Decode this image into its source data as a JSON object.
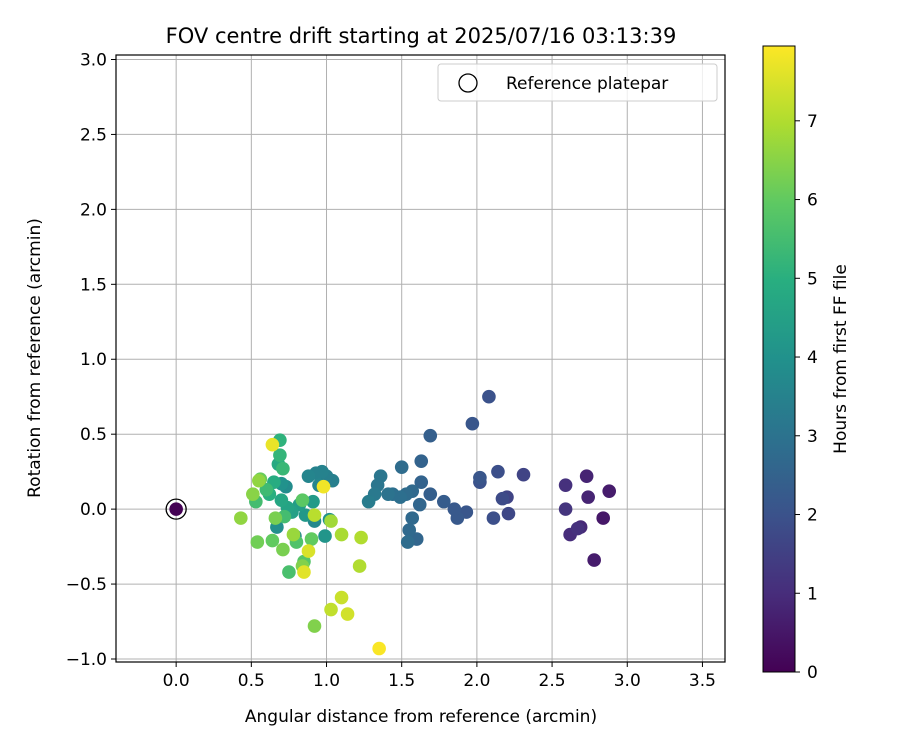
{
  "chart_data": {
    "type": "scatter",
    "title": "FOV centre drift starting at 2025/07/16 03:13:39",
    "xlabel": "Angular distance from reference (arcmin)",
    "ylabel": "Rotation from reference (arcmin)",
    "xlim": [
      -0.4,
      3.65
    ],
    "ylim": [
      -1.02,
      3.03
    ],
    "xticks": [
      0.0,
      0.5,
      1.0,
      1.5,
      2.0,
      2.5,
      3.0,
      3.5
    ],
    "xtick_labels": [
      "0.0",
      "0.5",
      "1.0",
      "1.5",
      "2.0",
      "2.5",
      "3.0",
      "3.5"
    ],
    "yticks": [
      -1.0,
      -0.5,
      0.0,
      0.5,
      1.0,
      1.5,
      2.0,
      2.5,
      3.0
    ],
    "ytick_labels": [
      "−1.0",
      "−0.5",
      "0.0",
      "0.5",
      "1.0",
      "1.5",
      "2.0",
      "2.5",
      "3.0"
    ],
    "grid": true,
    "legend": {
      "placement": "top-right",
      "entries": [
        "Reference platepar"
      ]
    },
    "reference_point": {
      "x": 0.0,
      "y": 0.0,
      "c": 0.0
    },
    "colorbar": {
      "label": "Hours from first FF file",
      "colormap": "viridis",
      "range": [
        0,
        7.95
      ],
      "ticks": [
        0,
        1,
        2,
        3,
        4,
        5,
        6,
        7
      ],
      "tick_labels": [
        "0",
        "1",
        "2",
        "3",
        "4",
        "5",
        "6",
        "7"
      ]
    },
    "points": [
      {
        "x": 2.84,
        "y": -0.06,
        "c": 0.5
      },
      {
        "x": 2.78,
        "y": -0.34,
        "c": 0.6
      },
      {
        "x": 2.88,
        "y": 0.12,
        "c": 0.6
      },
      {
        "x": 2.73,
        "y": 0.22,
        "c": 0.8
      },
      {
        "x": 2.74,
        "y": 0.08,
        "c": 0.8
      },
      {
        "x": 2.69,
        "y": -0.12,
        "c": 0.9
      },
      {
        "x": 2.62,
        "y": -0.17,
        "c": 1.0
      },
      {
        "x": 2.59,
        "y": 0.16,
        "c": 1.1
      },
      {
        "x": 2.59,
        "y": 0.0,
        "c": 1.2
      },
      {
        "x": 2.67,
        "y": -0.13,
        "c": 1.1
      },
      {
        "x": 2.31,
        "y": 0.23,
        "c": 1.6
      },
      {
        "x": 2.2,
        "y": 0.08,
        "c": 1.6
      },
      {
        "x": 2.21,
        "y": -0.03,
        "c": 1.7
      },
      {
        "x": 2.17,
        "y": 0.07,
        "c": 1.8
      },
      {
        "x": 2.14,
        "y": 0.25,
        "c": 1.9
      },
      {
        "x": 2.11,
        "y": -0.06,
        "c": 1.9
      },
      {
        "x": 2.08,
        "y": 0.75,
        "c": 2.0
      },
      {
        "x": 2.02,
        "y": 0.18,
        "c": 2.0
      },
      {
        "x": 2.02,
        "y": 0.21,
        "c": 2.1
      },
      {
        "x": 1.97,
        "y": 0.57,
        "c": 2.1
      },
      {
        "x": 1.93,
        "y": -0.02,
        "c": 2.1
      },
      {
        "x": 1.87,
        "y": -0.06,
        "c": 2.2
      },
      {
        "x": 1.85,
        "y": 0.0,
        "c": 2.2
      },
      {
        "x": 1.78,
        "y": 0.05,
        "c": 2.3
      },
      {
        "x": 1.69,
        "y": 0.49,
        "c": 2.4
      },
      {
        "x": 1.69,
        "y": 0.1,
        "c": 2.4
      },
      {
        "x": 1.63,
        "y": 0.32,
        "c": 2.5
      },
      {
        "x": 1.63,
        "y": 0.18,
        "c": 2.5
      },
      {
        "x": 1.62,
        "y": 0.03,
        "c": 2.6
      },
      {
        "x": 1.6,
        "y": -0.2,
        "c": 2.6
      },
      {
        "x": 1.57,
        "y": 0.12,
        "c": 2.7
      },
      {
        "x": 1.57,
        "y": -0.06,
        "c": 2.7
      },
      {
        "x": 1.55,
        "y": -0.14,
        "c": 2.7
      },
      {
        "x": 1.54,
        "y": -0.22,
        "c": 2.8
      },
      {
        "x": 1.53,
        "y": 0.1,
        "c": 2.8
      },
      {
        "x": 1.5,
        "y": 0.28,
        "c": 2.8
      },
      {
        "x": 1.49,
        "y": 0.08,
        "c": 2.9
      },
      {
        "x": 1.44,
        "y": 0.1,
        "c": 2.9
      },
      {
        "x": 1.41,
        "y": 0.1,
        "c": 3.0
      },
      {
        "x": 1.36,
        "y": 0.22,
        "c": 3.1
      },
      {
        "x": 1.34,
        "y": 0.16,
        "c": 3.1
      },
      {
        "x": 1.32,
        "y": 0.1,
        "c": 3.2
      },
      {
        "x": 1.28,
        "y": 0.05,
        "c": 3.3
      },
      {
        "x": 1.04,
        "y": 0.19,
        "c": 3.4
      },
      {
        "x": 1.0,
        "y": 0.22,
        "c": 3.4
      },
      {
        "x": 0.97,
        "y": 0.25,
        "c": 3.5
      },
      {
        "x": 0.93,
        "y": 0.24,
        "c": 3.5
      },
      {
        "x": 0.88,
        "y": 0.22,
        "c": 3.6
      },
      {
        "x": 0.95,
        "y": 0.16,
        "c": 3.6
      },
      {
        "x": 0.92,
        "y": -0.08,
        "c": 3.7
      },
      {
        "x": 0.79,
        "y": -0.18,
        "c": 3.8
      },
      {
        "x": 0.73,
        "y": 0.15,
        "c": 3.8
      },
      {
        "x": 0.67,
        "y": -0.12,
        "c": 3.9
      },
      {
        "x": 0.7,
        "y": 0.17,
        "c": 4.0
      },
      {
        "x": 1.02,
        "y": -0.07,
        "c": 4.0
      },
      {
        "x": 0.99,
        "y": -0.18,
        "c": 4.1
      },
      {
        "x": 0.86,
        "y": -0.04,
        "c": 4.2
      },
      {
        "x": 0.91,
        "y": 0.05,
        "c": 4.3
      },
      {
        "x": 0.82,
        "y": 0.03,
        "c": 4.4
      },
      {
        "x": 0.77,
        "y": -0.02,
        "c": 4.5
      },
      {
        "x": 0.74,
        "y": 0.01,
        "c": 4.6
      },
      {
        "x": 0.7,
        "y": 0.06,
        "c": 4.7
      },
      {
        "x": 0.68,
        "y": 0.3,
        "c": 4.8
      },
      {
        "x": 0.65,
        "y": 0.18,
        "c": 4.9
      },
      {
        "x": 0.62,
        "y": 0.1,
        "c": 5.0
      },
      {
        "x": 0.69,
        "y": 0.46,
        "c": 5.1
      },
      {
        "x": 0.69,
        "y": 0.36,
        "c": 5.2
      },
      {
        "x": 0.71,
        "y": 0.27,
        "c": 5.3
      },
      {
        "x": 0.6,
        "y": 0.13,
        "c": 5.4
      },
      {
        "x": 0.53,
        "y": 0.05,
        "c": 5.5
      },
      {
        "x": 0.72,
        "y": -0.05,
        "c": 5.5
      },
      {
        "x": 0.75,
        "y": -0.42,
        "c": 5.6
      },
      {
        "x": 0.8,
        "y": -0.22,
        "c": 5.7
      },
      {
        "x": 0.85,
        "y": -0.35,
        "c": 5.8
      },
      {
        "x": 0.84,
        "y": 0.06,
        "c": 5.9
      },
      {
        "x": 0.9,
        "y": -0.2,
        "c": 6.0
      },
      {
        "x": 0.64,
        "y": -0.21,
        "c": 6.0
      },
      {
        "x": 0.56,
        "y": 0.2,
        "c": 6.1
      },
      {
        "x": 0.54,
        "y": -0.22,
        "c": 6.2
      },
      {
        "x": 0.66,
        "y": -0.06,
        "c": 6.3
      },
      {
        "x": 0.71,
        "y": -0.27,
        "c": 6.3
      },
      {
        "x": 0.84,
        "y": -0.38,
        "c": 6.4
      },
      {
        "x": 0.92,
        "y": -0.78,
        "c": 6.4
      },
      {
        "x": 0.51,
        "y": 0.1,
        "c": 6.5
      },
      {
        "x": 0.55,
        "y": 0.19,
        "c": 6.6
      },
      {
        "x": 0.43,
        "y": -0.06,
        "c": 6.6
      },
      {
        "x": 0.78,
        "y": -0.17,
        "c": 6.7
      },
      {
        "x": 1.03,
        "y": -0.08,
        "c": 6.8
      },
      {
        "x": 1.1,
        "y": -0.17,
        "c": 6.9
      },
      {
        "x": 1.22,
        "y": -0.38,
        "c": 7.0
      },
      {
        "x": 1.23,
        "y": -0.19,
        "c": 7.0
      },
      {
        "x": 0.92,
        "y": -0.04,
        "c": 7.1
      },
      {
        "x": 1.03,
        "y": -0.67,
        "c": 7.2
      },
      {
        "x": 1.1,
        "y": -0.59,
        "c": 7.3
      },
      {
        "x": 1.14,
        "y": -0.7,
        "c": 7.4
      },
      {
        "x": 0.88,
        "y": -0.28,
        "c": 7.5
      },
      {
        "x": 0.85,
        "y": -0.42,
        "c": 7.6
      },
      {
        "x": 0.64,
        "y": 0.43,
        "c": 7.7
      },
      {
        "x": 0.98,
        "y": 0.15,
        "c": 7.8
      },
      {
        "x": 1.35,
        "y": -0.93,
        "c": 7.9
      }
    ]
  }
}
